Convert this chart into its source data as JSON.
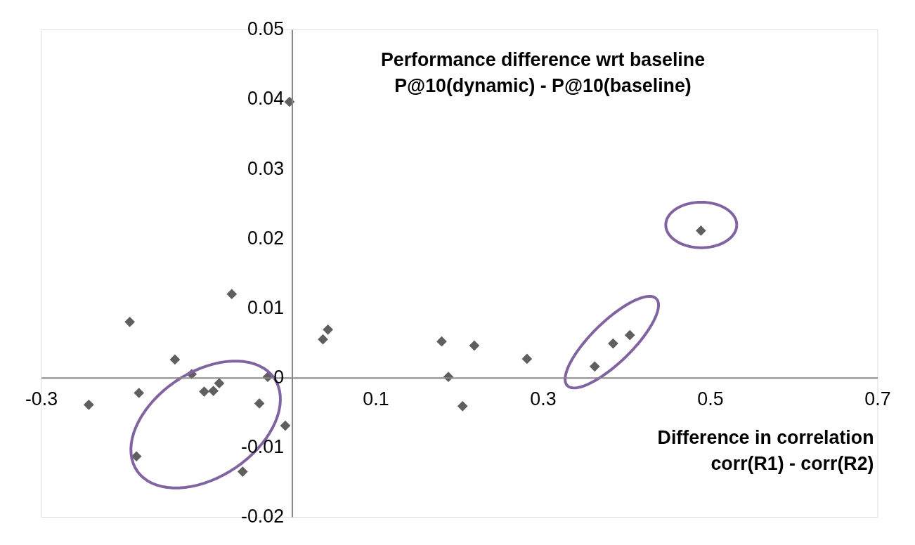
{
  "chart_data": {
    "type": "scatter",
    "xlabel": "Difference in correlation\ncorr(R1) - corr(R2)",
    "ylabel": "Performance difference wrt baseline\nP@10(dynamic) - P@10(baseline)",
    "x": [
      -0.243,
      -0.194,
      -0.183,
      -0.186,
      -0.14,
      -0.12,
      -0.105,
      -0.094,
      -0.087,
      -0.072,
      -0.059,
      -0.039,
      -0.029,
      -0.008,
      -0.003,
      0.037,
      0.043,
      0.179,
      0.187,
      0.204,
      0.218,
      0.281,
      0.362,
      0.384,
      0.404,
      0.489
    ],
    "values": [
      -0.0039,
      0.008,
      -0.0022,
      -0.0113,
      0.0026,
      0.0005,
      -0.002,
      -0.0019,
      -0.0008,
      0.012,
      -0.0135,
      -0.0037,
      0.0001,
      -0.0069,
      0.0396,
      0.0055,
      0.0069,
      0.0052,
      0.0001,
      -0.0041,
      0.0046,
      0.0027,
      0.0016,
      0.0049,
      0.0061,
      0.0211
    ],
    "color": "#5f5f5f",
    "marker": "diamond",
    "xlim": [
      -0.3,
      0.7
    ],
    "xticks": [
      -0.3,
      0.1,
      0.3,
      0.5,
      0.7
    ],
    "ylim": [
      -0.02,
      0.05
    ],
    "yticks": [
      -0.02,
      -0.01,
      0,
      0.01,
      0.02,
      0.03,
      0.04,
      0.05
    ],
    "grid": false,
    "legend": false
  }
}
